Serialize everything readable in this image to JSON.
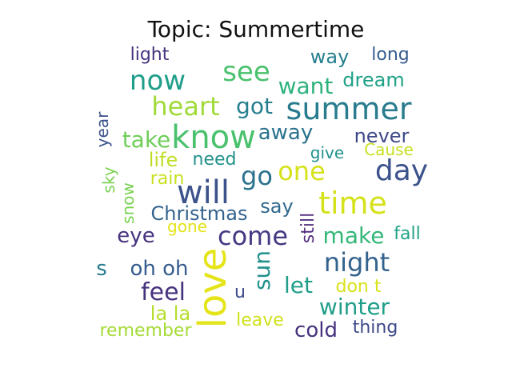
{
  "title": "Topic: Summertime",
  "words": [
    {
      "text": "light",
      "color": "#46327e"
    },
    {
      "text": "way",
      "color": "#277f8e"
    },
    {
      "text": "long",
      "color": "#365c8d"
    },
    {
      "text": "now",
      "color": "#1f9e89"
    },
    {
      "text": "see",
      "color": "#4ac16d"
    },
    {
      "text": "want",
      "color": "#2db27d"
    },
    {
      "text": "dream",
      "color": "#1fa187"
    },
    {
      "text": "heart",
      "color": "#a0da39"
    },
    {
      "text": "got",
      "color": "#277f8e"
    },
    {
      "text": "summer",
      "color": "#287c8e"
    },
    {
      "text": "year",
      "color": "#3b528b"
    },
    {
      "text": "take",
      "color": "#6ece58"
    },
    {
      "text": "know",
      "color": "#4ac16d"
    },
    {
      "text": "away",
      "color": "#2c728e"
    },
    {
      "text": "never",
      "color": "#3e4989"
    },
    {
      "text": "give",
      "color": "#21918c"
    },
    {
      "text": "Cause",
      "color": "#c8e020"
    },
    {
      "text": "life",
      "color": "#bddf26"
    },
    {
      "text": "need",
      "color": "#21918c"
    },
    {
      "text": "go",
      "color": "#2c728e"
    },
    {
      "text": "one",
      "color": "#d5e21a"
    },
    {
      "text": "day",
      "color": "#3b528b"
    },
    {
      "text": "sky",
      "color": "#7ad151"
    },
    {
      "text": "rain",
      "color": "#c8e020"
    },
    {
      "text": "will",
      "color": "#3b528b"
    },
    {
      "text": "time",
      "color": "#d5e21a"
    },
    {
      "text": "snow",
      "color": "#7ad151"
    },
    {
      "text": "Christmas",
      "color": "#33638d"
    },
    {
      "text": "say",
      "color": "#31688e"
    },
    {
      "text": "still",
      "color": "#54307e"
    },
    {
      "text": "gone",
      "color": "#e2e418"
    },
    {
      "text": "eye",
      "color": "#46327e"
    },
    {
      "text": "come",
      "color": "#443983"
    },
    {
      "text": "make",
      "color": "#35b779"
    },
    {
      "text": "fall",
      "color": "#20a486"
    },
    {
      "text": "love",
      "color": "#e5e419"
    },
    {
      "text": "s",
      "color": "#287c8e"
    },
    {
      "text": "oh oh",
      "color": "#365c8d"
    },
    {
      "text": "sun",
      "color": "#21918c"
    },
    {
      "text": "night",
      "color": "#33638d"
    },
    {
      "text": "feel",
      "color": "#46327e"
    },
    {
      "text": "u",
      "color": "#3e4989"
    },
    {
      "text": "let",
      "color": "#1f9e89"
    },
    {
      "text": "don t",
      "color": "#d8e219"
    },
    {
      "text": "winter",
      "color": "#1f9e89"
    },
    {
      "text": "la la",
      "color": "#b5de2b"
    },
    {
      "text": "leave",
      "color": "#d0e11c"
    },
    {
      "text": "remember",
      "color": "#a5db36"
    },
    {
      "text": "cold",
      "color": "#46327e"
    },
    {
      "text": "thing",
      "color": "#3e4989"
    }
  ]
}
